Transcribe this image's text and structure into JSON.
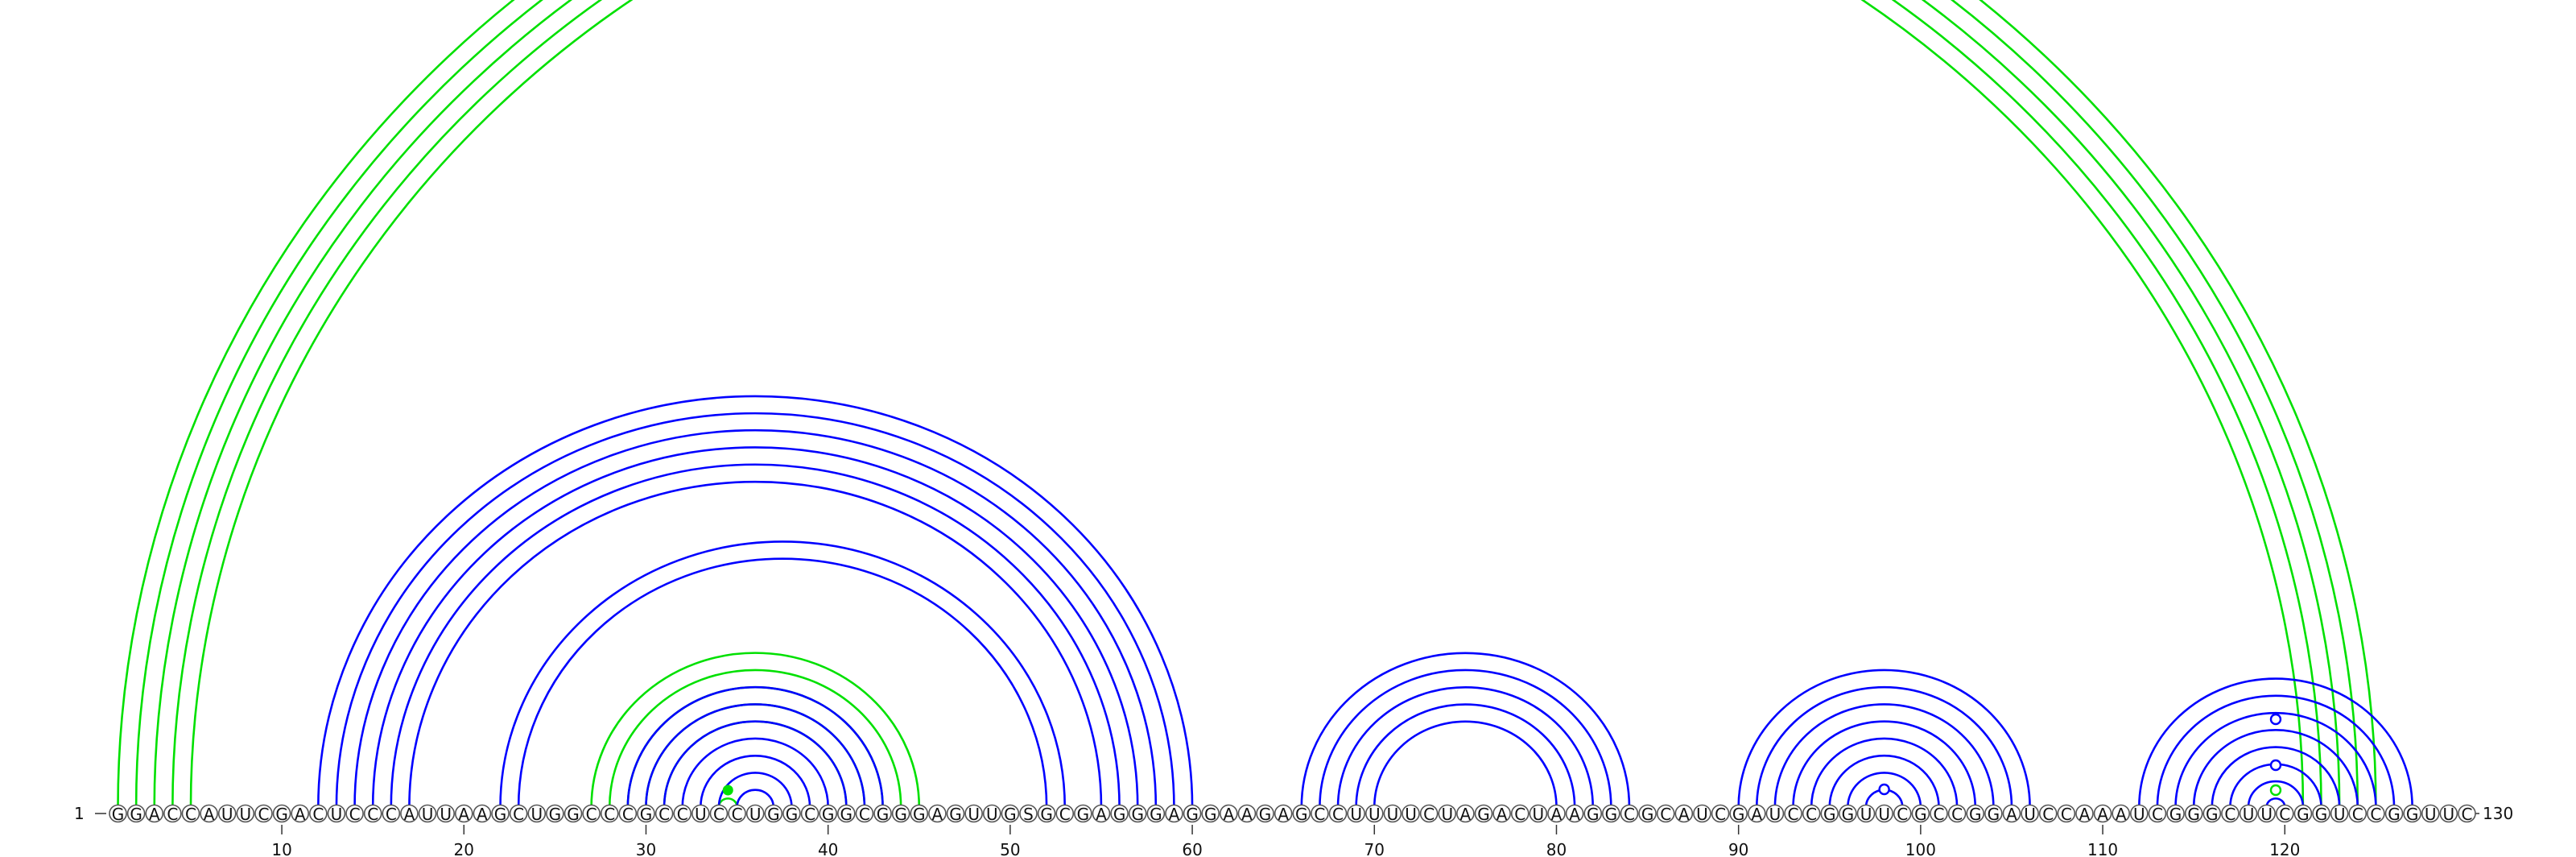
{
  "sequence": "GGACCAUUCGACUCCCAUUAAGCUGGCCCGCCUCCUGGCGGCGGGAGUUGSGCGAGGGAGGAAGAGCCUUUUCUAGACUAAGGCGCAUCGAUCCGGUUCGCCGGAUCCAAAUCGGGCUUCGGUCCGGUUC",
  "start_label": "1",
  "end_label": "130",
  "tick_labels": [
    "10",
    "20",
    "30",
    "40",
    "50",
    "60",
    "70",
    "80",
    "90",
    "100",
    "110",
    "120"
  ],
  "tick_positions": [
    10,
    20,
    30,
    40,
    50,
    60,
    70,
    80,
    90,
    100,
    110,
    120
  ],
  "colors": {
    "reference_pairs": "#00e000",
    "predicted_pairs": "#0000ff",
    "nucleotide_outline": "#555555"
  },
  "green_pairs": [
    [
      1,
      125
    ],
    [
      2,
      124
    ],
    [
      3,
      123
    ],
    [
      4,
      122
    ],
    [
      5,
      121
    ],
    [
      27,
      45
    ],
    [
      28,
      44
    ],
    [
      29,
      43
    ],
    [
      30,
      42
    ],
    [
      31,
      41
    ],
    [
      34,
      35
    ]
  ],
  "blue_pairs": [
    [
      12,
      60
    ],
    [
      13,
      59
    ],
    [
      14,
      58
    ],
    [
      15,
      57
    ],
    [
      16,
      56
    ],
    [
      17,
      55
    ],
    [
      22,
      53
    ],
    [
      23,
      52
    ],
    [
      29,
      43
    ],
    [
      30,
      42
    ],
    [
      31,
      41
    ],
    [
      32,
      40
    ],
    [
      33,
      39
    ],
    [
      34,
      38
    ],
    [
      35,
      37
    ],
    [
      66,
      84
    ],
    [
      67,
      83
    ],
    [
      68,
      82
    ],
    [
      69,
      81
    ],
    [
      70,
      80
    ],
    [
      90,
      106
    ],
    [
      91,
      105
    ],
    [
      92,
      104
    ],
    [
      93,
      103
    ],
    [
      94,
      102
    ],
    [
      95,
      101
    ],
    [
      96,
      100
    ],
    [
      97,
      99
    ],
    [
      112,
      127
    ],
    [
      113,
      126
    ],
    [
      114,
      125
    ],
    [
      115,
      124
    ],
    [
      116,
      123
    ],
    [
      117,
      122
    ],
    [
      118,
      121
    ],
    [
      119,
      120
    ]
  ],
  "blue_markers": [
    98,
    119.5,
    119.5
  ],
  "green_markers": [
    119.5
  ]
}
